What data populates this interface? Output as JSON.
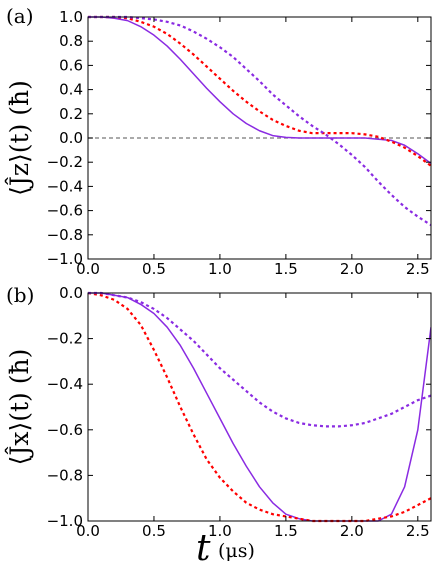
{
  "chart_data": [
    {
      "type": "line",
      "panel_label": "(a)",
      "ylabel": "⟨Ĵz⟩(t) (ħ)",
      "xlim": [
        0.0,
        2.6
      ],
      "ylim": [
        -1.0,
        1.0
      ],
      "xticks": [
        "0.0",
        "0.5",
        "1.0",
        "1.5",
        "2.0",
        "2.5"
      ],
      "yticks": [
        "1.0",
        "0.8",
        "0.6",
        "0.4",
        "0.2",
        "0.0",
        "−0.2",
        "−0.4",
        "−0.6",
        "−0.8",
        "−1.0"
      ],
      "reference_line": {
        "y": 0.0,
        "style": "dashed",
        "color": "#777777"
      },
      "series": [
        {
          "color": "#8a2be2",
          "style": "solid",
          "x": [
            0.0,
            0.1,
            0.2,
            0.3,
            0.4,
            0.5,
            0.6,
            0.7,
            0.8,
            0.9,
            1.0,
            1.1,
            1.2,
            1.3,
            1.4,
            1.5,
            1.6,
            1.7,
            1.8,
            1.9,
            2.0,
            2.1,
            2.2,
            2.3,
            2.4,
            2.5,
            2.6
          ],
          "y": [
            1.0,
            1.0,
            0.99,
            0.97,
            0.92,
            0.85,
            0.76,
            0.65,
            0.53,
            0.41,
            0.3,
            0.2,
            0.12,
            0.06,
            0.02,
            0.005,
            0.0,
            0.0,
            0.0,
            0.0,
            0.0,
            0.0,
            -0.01,
            -0.02,
            -0.06,
            -0.13,
            -0.21
          ]
        },
        {
          "color": "#ff0000",
          "style": "dotted",
          "x": [
            0.0,
            0.1,
            0.2,
            0.3,
            0.4,
            0.5,
            0.6,
            0.7,
            0.8,
            0.9,
            1.0,
            1.1,
            1.2,
            1.3,
            1.4,
            1.5,
            1.6,
            1.7,
            1.8,
            1.9,
            2.0,
            2.1,
            2.2,
            2.3,
            2.4,
            2.5,
            2.6
          ],
          "y": [
            1.0,
            1.0,
            1.0,
            0.99,
            0.96,
            0.92,
            0.86,
            0.78,
            0.69,
            0.59,
            0.49,
            0.39,
            0.3,
            0.22,
            0.15,
            0.1,
            0.06,
            0.04,
            0.04,
            0.04,
            0.04,
            0.03,
            0.01,
            -0.03,
            -0.08,
            -0.15,
            -0.23
          ]
        },
        {
          "color": "#8a2be2",
          "style": "dotted",
          "x": [
            0.0,
            0.1,
            0.2,
            0.3,
            0.4,
            0.5,
            0.6,
            0.7,
            0.8,
            0.9,
            1.0,
            1.1,
            1.2,
            1.3,
            1.4,
            1.5,
            1.6,
            1.7,
            1.8,
            1.9,
            2.0,
            2.1,
            2.2,
            2.3,
            2.4,
            2.5,
            2.6
          ],
          "y": [
            1.0,
            1.0,
            1.0,
            1.0,
            0.99,
            0.98,
            0.96,
            0.93,
            0.88,
            0.82,
            0.75,
            0.67,
            0.57,
            0.47,
            0.36,
            0.27,
            0.18,
            0.1,
            0.03,
            -0.05,
            -0.14,
            -0.24,
            -0.36,
            -0.47,
            -0.57,
            -0.65,
            -0.72
          ]
        }
      ]
    },
    {
      "type": "line",
      "panel_label": "(b)",
      "ylabel": "⟨Ĵx⟩(t) (ħ)",
      "xlabel": "t",
      "xunit": "(μs)",
      "xlim": [
        0.0,
        2.6
      ],
      "ylim": [
        -1.0,
        0.0
      ],
      "xticks": [
        "0.0",
        "0.5",
        "1.0",
        "1.5",
        "2.0",
        "2.5"
      ],
      "yticks": [
        "0.0",
        "−0.2",
        "−0.4",
        "−0.6",
        "−0.8",
        "−1.0"
      ],
      "series": [
        {
          "color": "#8a2be2",
          "style": "solid",
          "x": [
            0.0,
            0.1,
            0.2,
            0.3,
            0.4,
            0.5,
            0.6,
            0.7,
            0.8,
            0.9,
            1.0,
            1.1,
            1.2,
            1.3,
            1.4,
            1.5,
            1.6,
            1.7,
            1.8,
            1.9,
            2.0,
            2.1,
            2.2,
            2.3,
            2.4,
            2.5,
            2.6
          ],
          "y": [
            0.0,
            0.0,
            -0.01,
            -0.02,
            -0.05,
            -0.09,
            -0.15,
            -0.23,
            -0.33,
            -0.44,
            -0.55,
            -0.66,
            -0.76,
            -0.85,
            -0.92,
            -0.97,
            -0.99,
            -1.0,
            -1.0,
            -1.0,
            -1.0,
            -1.0,
            -1.0,
            -0.97,
            -0.85,
            -0.6,
            -0.15
          ]
        },
        {
          "color": "#ff0000",
          "style": "dotted",
          "x": [
            0.0,
            0.1,
            0.2,
            0.3,
            0.4,
            0.5,
            0.6,
            0.7,
            0.8,
            0.9,
            1.0,
            1.1,
            1.2,
            1.3,
            1.4,
            1.5,
            1.6,
            1.7,
            1.8,
            1.9,
            2.0,
            2.1,
            2.2,
            2.3,
            2.4,
            2.5,
            2.6
          ],
          "y": [
            0.0,
            -0.01,
            -0.03,
            -0.07,
            -0.14,
            -0.25,
            -0.37,
            -0.5,
            -0.62,
            -0.73,
            -0.81,
            -0.87,
            -0.92,
            -0.95,
            -0.97,
            -0.98,
            -0.99,
            -1.0,
            -1.0,
            -1.0,
            -1.0,
            -1.0,
            -0.99,
            -0.98,
            -0.96,
            -0.93,
            -0.9
          ]
        },
        {
          "color": "#8a2be2",
          "style": "dotted",
          "x": [
            0.0,
            0.1,
            0.2,
            0.3,
            0.4,
            0.5,
            0.6,
            0.7,
            0.8,
            0.9,
            1.0,
            1.1,
            1.2,
            1.3,
            1.4,
            1.5,
            1.6,
            1.7,
            1.8,
            1.9,
            2.0,
            2.1,
            2.2,
            2.3,
            2.4,
            2.5,
            2.6
          ],
          "y": [
            0.0,
            0.0,
            -0.01,
            -0.02,
            -0.04,
            -0.07,
            -0.11,
            -0.16,
            -0.21,
            -0.27,
            -0.33,
            -0.38,
            -0.43,
            -0.48,
            -0.52,
            -0.55,
            -0.57,
            -0.58,
            -0.585,
            -0.585,
            -0.58,
            -0.57,
            -0.55,
            -0.53,
            -0.5,
            -0.47,
            -0.45
          ]
        }
      ]
    }
  ]
}
